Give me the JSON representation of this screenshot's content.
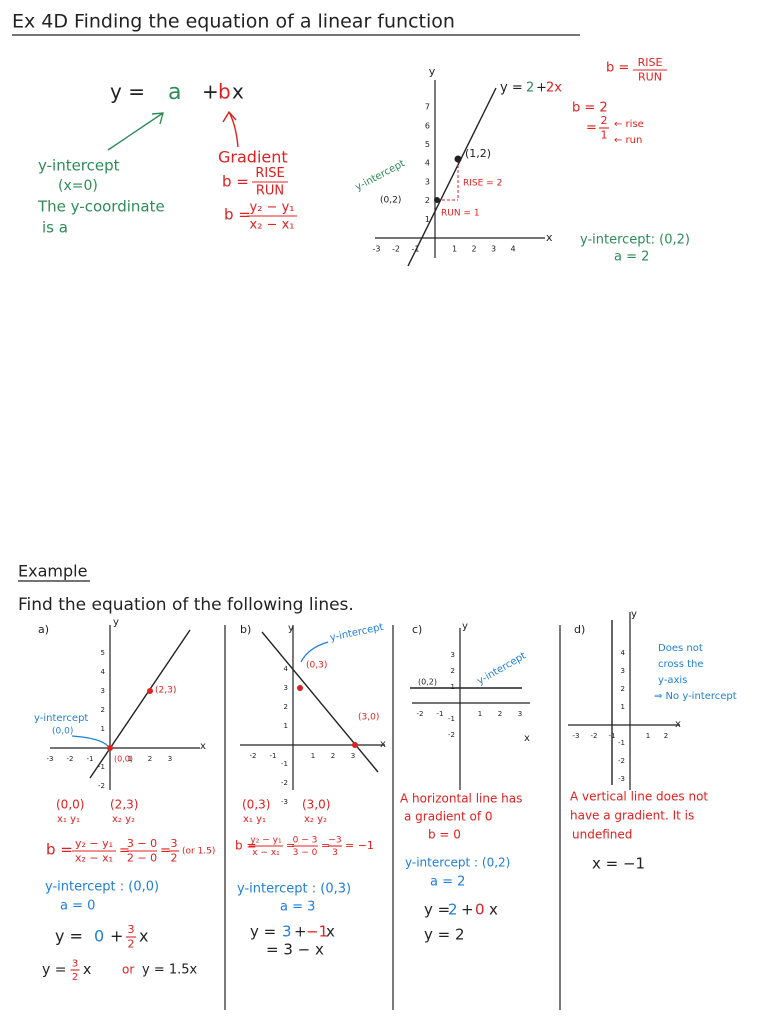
{
  "header": {
    "title": "Ex 4D Finding the equation of a linear function"
  },
  "intro": {
    "formula": {
      "lhs": "y =",
      "a": "a",
      "plus": "+",
      "b": "b",
      "x": "x"
    },
    "intercept": {
      "label": "y-intercept",
      "condition": "(x=0)",
      "line1": "The y-coordinate",
      "line2": "is a"
    },
    "gradient": {
      "label": "Gradient",
      "rise_run": {
        "lhs": "b =",
        "num": "RISE",
        "den": "RUN"
      },
      "formula": {
        "lhs": "b =",
        "num": "y₂ − y₁",
        "den": "x₂ − x₁"
      }
    },
    "graph": {
      "y_axis": "y",
      "x_axis": "x",
      "y_ticks": [
        1,
        2,
        3,
        4,
        5,
        6,
        7
      ],
      "x_ticks": [
        -3,
        -2,
        -1,
        1,
        2,
        3,
        4
      ],
      "line_label": {
        "y": "y =",
        "a": "2",
        "plus": "+",
        "bx": "2x"
      },
      "point": "(1,2)",
      "intercept_point": "(0,2)",
      "intercept": "y-intercept",
      "rise": "RISE = 2",
      "run": "RUN = 1"
    },
    "working": {
      "rise_run": {
        "lhs": "b =",
        "num": "RISE",
        "den": "RUN"
      },
      "b": "b = 2",
      "fraction": {
        "eq": "=",
        "num": "2",
        "den": "1",
        "rise": "← rise",
        "run": "← run"
      },
      "intercept": "y-intercept: (0,2)",
      "a": "a = 2"
    }
  },
  "example": {
    "heading": "Example",
    "instruction": "Find the equation of the following lines.",
    "parts": [
      {
        "label": "a)",
        "graph": {
          "y_axis": "y",
          "x_axis": "x",
          "y_ticks": [
            -2,
            -1,
            1,
            2,
            3,
            4,
            5
          ],
          "x_ticks": [
            -3,
            -2,
            -1,
            1,
            2,
            3
          ],
          "point": "(2,3)",
          "origin_point": "(0,0)",
          "intercept": "y-intercept",
          "intercept_point": "(0,0)"
        },
        "work": {
          "p1": "(0,0)",
          "p2": "(2,3)",
          "l1": "x₁ y₁",
          "l2": "x₂ y₂",
          "gradient": {
            "lhs": "b =",
            "num": "y₂ − y₁",
            "den": "x₂ − x₁",
            "eq1": "=",
            "num2": "3 − 0",
            "den2": "2 − 0",
            "eq2": "=",
            "num3": "3",
            "den3": "2",
            "note": "(or 1.5)"
          },
          "intercept": "y-intercept : (0,0)",
          "a": "a = 0",
          "equation": {
            "y": "y =",
            "a": "0",
            "plus": "+",
            "num": "3",
            "den": "2",
            "x": "x"
          },
          "final": {
            "y": "y =",
            "num": "3",
            "den": "2",
            "x": "x",
            "or": "or",
            "alt": "y = 1.5x"
          }
        }
      },
      {
        "label": "b)",
        "graph": {
          "y_axis": "y",
          "x_axis": "x",
          "y_ticks": [
            -3,
            -2,
            -1,
            1,
            2,
            3,
            4
          ],
          "x_ticks": [
            -2,
            -1,
            1,
            2,
            3
          ],
          "intercept": "y-intercept",
          "point1": "(0,3)",
          "point2": "(3,0)"
        },
        "work": {
          "p1": "(0,3)",
          "p2": "(3,0)",
          "l1": "x₁ y₁",
          "l2": "x₂ y₂",
          "gradient": {
            "lhs": "b =",
            "num": "y₂ − y₁",
            "den": "x − x₁",
            "eq1": "=",
            "num2": "0 − 3",
            "den2": "3 − 0",
            "eq2": "=",
            "num3": "−3",
            "den3": "3",
            "result": "= −1"
          },
          "intercept": "y-intercept : (0,3)",
          "a": "a = 3",
          "equation": {
            "y": "y =",
            "a": "3",
            "plus": "+",
            "b": "−1",
            "x": "x"
          },
          "simplified": "= 3 − x"
        }
      },
      {
        "label": "c)",
        "graph": {
          "y_axis": "y",
          "x_axis": "x",
          "y_ticks": [
            -2,
            -1,
            1,
            2,
            3
          ],
          "x_ticks": [
            -2,
            -1,
            1,
            2,
            3
          ],
          "intercept": "y-intercept",
          "point": "(0,2)"
        },
        "work": {
          "note1": "A horizontal line has",
          "note2": "a gradient of 0",
          "b": "b = 0",
          "intercept": "y-intercept : (0,2)",
          "a": "a = 2",
          "equation": {
            "y": "y =",
            "a": "2",
            "plus": "+",
            "b": "0",
            "x": "x"
          },
          "final": "y = 2"
        }
      },
      {
        "label": "d)",
        "graph": {
          "y_axis": "y",
          "x_axis": "x",
          "y_ticks": [
            -3,
            -2,
            -1,
            1,
            2,
            3,
            4
          ],
          "x_ticks": [
            -3,
            -2,
            -1,
            1,
            2
          ],
          "note": [
            "Does not",
            "cross the",
            "y-axis",
            "⇒ No y-intercept"
          ]
        },
        "work": {
          "note1": "A vertical line does not",
          "note2": "have a gradient. It is",
          "note3": "undefined",
          "equation": "x = −1"
        }
      }
    ]
  }
}
